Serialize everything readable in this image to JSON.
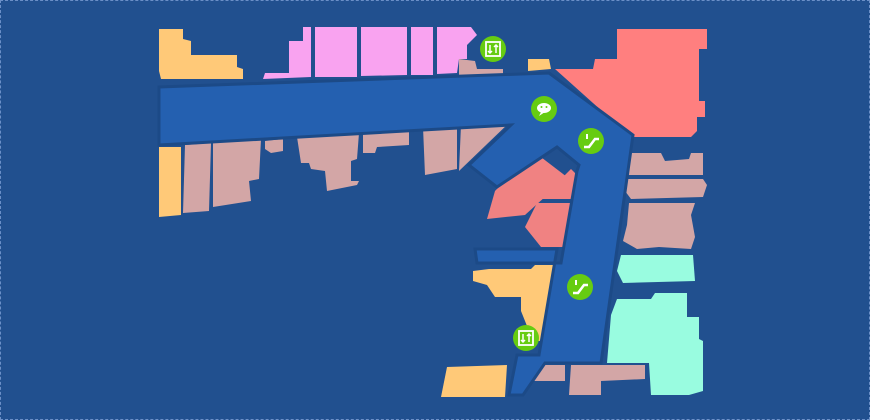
{
  "map": {
    "colors": {
      "background": "#21508f",
      "corridor": "#2460b0",
      "corridor_edge": "#1c4a87",
      "yellow_store": "#ffc978",
      "pink_store": "#f9a3f0",
      "salmon_store": "#ff7f7f",
      "red_store": "#f08282",
      "rose_store": "#d3a6a6",
      "mint_store": "#99fce0",
      "poi_green": "#66cc11"
    },
    "pois": [
      {
        "type": "elevator",
        "icon": "elevator-icon"
      },
      {
        "type": "service",
        "icon": "chat-icon"
      },
      {
        "type": "escalator",
        "icon": "escalator-icon"
      },
      {
        "type": "escalator",
        "icon": "escalator-icon"
      },
      {
        "type": "elevator",
        "icon": "elevator-icon"
      }
    ]
  }
}
